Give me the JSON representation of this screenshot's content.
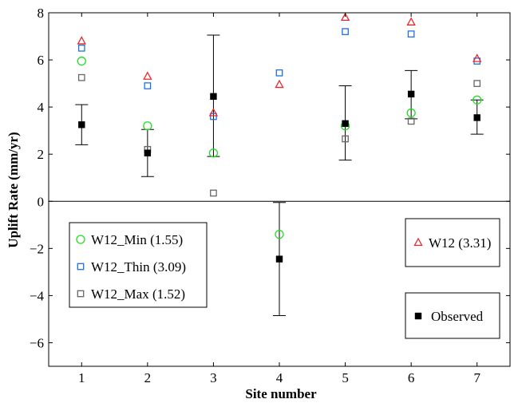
{
  "chart_data": {
    "type": "scatter",
    "title": "",
    "xlabel": "Site number",
    "ylabel": "Uplift Rate (mm/yr)",
    "xlim": [
      0.5,
      7.5
    ],
    "ylim": [
      -7,
      8
    ],
    "x_ticks": [
      "1",
      "2",
      "3",
      "4",
      "5",
      "6",
      "7"
    ],
    "y_ticks": [
      "−6",
      "−4",
      "−2",
      "0",
      "2",
      "4",
      "6",
      "8"
    ],
    "grid": false,
    "zero_line": true,
    "series": [
      {
        "name": "W12_Min (1.55)",
        "marker": "circle",
        "color": "#22dd22",
        "x": [
          1,
          2,
          3,
          4,
          5,
          6,
          7
        ],
        "y": [
          5.95,
          3.2,
          2.05,
          -1.4,
          3.2,
          3.75,
          4.3
        ]
      },
      {
        "name": "W12_Thin (3.09)",
        "marker": "square",
        "color": "#1f6fe5",
        "x": [
          1,
          2,
          3,
          4,
          5,
          6,
          7
        ],
        "y": [
          6.5,
          4.9,
          3.6,
          5.45,
          7.2,
          7.1,
          5.95
        ]
      },
      {
        "name": "W12_Max (1.52)",
        "marker": "square",
        "color": "#666666",
        "x": [
          1,
          2,
          3,
          5,
          6,
          7
        ],
        "y": [
          5.25,
          2.2,
          0.35,
          2.65,
          3.4,
          5.0
        ]
      },
      {
        "name": "W12 (3.31)",
        "marker": "triangle",
        "color": "#e8282e",
        "x": [
          1,
          2,
          3,
          4,
          5,
          6,
          7
        ],
        "y": [
          6.8,
          5.3,
          3.75,
          4.95,
          7.8,
          7.6,
          6.05
        ]
      },
      {
        "name": "Observed",
        "marker": "filled-square",
        "color": "#000000",
        "x": [
          1,
          2,
          3,
          4,
          5,
          6,
          7
        ],
        "y": [
          3.25,
          2.05,
          4.45,
          -2.45,
          3.3,
          4.55,
          3.55
        ],
        "error_low": [
          2.4,
          1.05,
          1.9,
          -4.85,
          1.75,
          3.5,
          2.85
        ],
        "error_high": [
          4.1,
          3.05,
          7.05,
          -0.05,
          4.9,
          5.55,
          4.3
        ]
      }
    ],
    "legends": [
      {
        "placement": "lower-left",
        "entries": [
          0,
          1,
          2
        ]
      },
      {
        "placement": "middle-right",
        "entries": [
          3
        ]
      },
      {
        "placement": "lower-right",
        "entries": [
          4
        ]
      }
    ]
  }
}
